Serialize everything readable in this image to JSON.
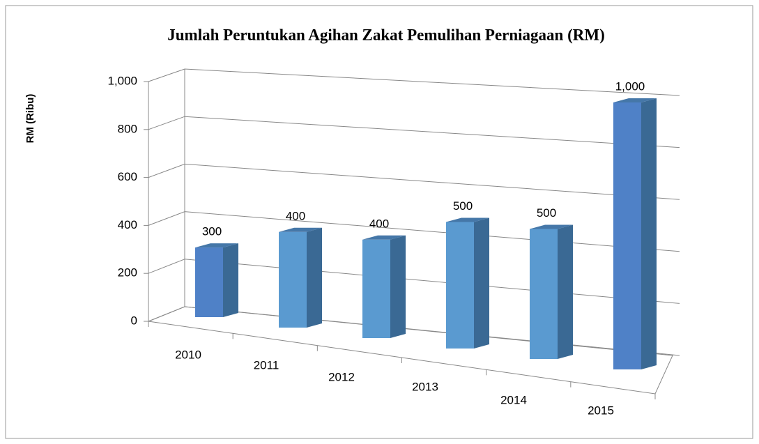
{
  "chart_data": {
    "type": "bar3d",
    "title": "Jumlah Peruntukan Agihan Zakat Pemulihan Perniagaan (RM)",
    "y_label": "RM (Ribu)",
    "categories": [
      "2010",
      "2011",
      "2012",
      "2013",
      "2014",
      "2015"
    ],
    "values": [
      300,
      400,
      400,
      500,
      500,
      1000
    ],
    "value_labels": [
      "300",
      "400",
      "400",
      "500",
      "500",
      "1,000"
    ],
    "colors": [
      "#4f81c7",
      "#5a9ad0",
      "#5a9ad0",
      "#5a9ad0",
      "#5a9ad0",
      "#4f81c7"
    ],
    "ylim": [
      0,
      1000
    ],
    "yticks": [
      0,
      200,
      400,
      600,
      800,
      {
        "value": 1000,
        "label": "1,000"
      }
    ],
    "grid": true
  }
}
